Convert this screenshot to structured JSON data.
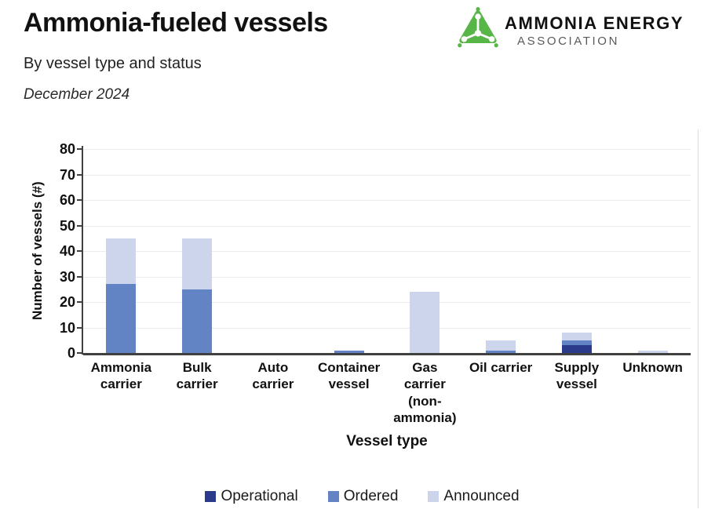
{
  "header": {
    "title": "Ammonia-fueled vessels",
    "subtitle": "By vessel type and status",
    "date": "December 2024"
  },
  "logo": {
    "name_line1": "AMMONIA ENERGY",
    "name_line2": "ASSOCIATION",
    "icon": "ammonia-molecule-triangle-icon",
    "green": "#58b548",
    "gray": "#595a5c"
  },
  "chart_data": {
    "type": "bar",
    "stacked": true,
    "title": "Ammonia-fueled vessels — by vessel type and status — December 2024",
    "xlabel": "Vessel type",
    "ylabel": "Number of vessels (#)",
    "ylim": [
      0,
      80
    ],
    "yticks": [
      0,
      10,
      20,
      30,
      40,
      50,
      60,
      70,
      80
    ],
    "grid": true,
    "legend_position": "bottom",
    "categories": [
      "Ammonia carrier",
      "Bulk carrier",
      "Auto carrier",
      "Container vessel",
      "Gas carrier (non-ammonia)",
      "Oil carrier",
      "Supply vessel",
      "Unknown"
    ],
    "series": [
      {
        "name": "Operational",
        "color": "#2c3a8c",
        "values": [
          0,
          0,
          0,
          0,
          0,
          0,
          3,
          0
        ]
      },
      {
        "name": "Ordered",
        "color": "#6283c4",
        "values": [
          27,
          25,
          0,
          1,
          0,
          1,
          2,
          0
        ]
      },
      {
        "name": "Announced",
        "color": "#cdd5ec",
        "values": [
          18,
          20,
          0,
          0,
          24,
          4,
          3,
          1
        ]
      }
    ]
  }
}
